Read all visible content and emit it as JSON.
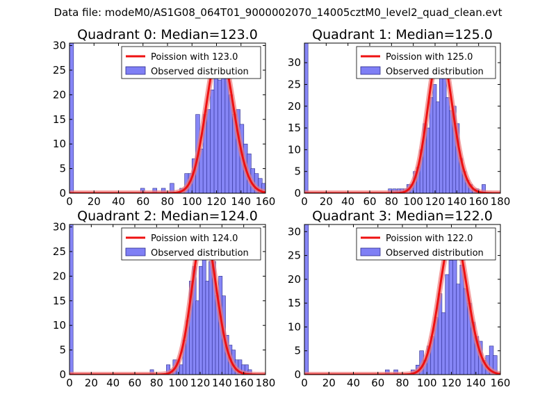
{
  "suptitle": "Data file: modeM0/AS1G08_064T01_9000002070_14005cztM0_level2_quad_clean.evt",
  "colors": {
    "hist_fill": "#7f7ff5",
    "hist_edge": "#2a2a8a",
    "poisson_line": "#ee1111",
    "poisson_glow": "#f07a7a",
    "axes": "#000000"
  },
  "chart_data": [
    {
      "type": "bar",
      "title": "Quadrant 0: Median=123.0",
      "xlim": [
        0,
        160
      ],
      "ylim": [
        0,
        30.5
      ],
      "xticks": [
        0,
        20,
        40,
        60,
        80,
        100,
        120,
        140,
        160
      ],
      "yticks": [
        0,
        5,
        10,
        15,
        20,
        25,
        30
      ],
      "bin_width": 3.3,
      "legend": {
        "position": "top-right",
        "line_label": "Poission with 123.0",
        "bar_label": "Observed distribution"
      },
      "poisson": {
        "mean": 123.0,
        "peak": 29.2
      },
      "histogram": [
        {
          "x": 0,
          "count": 30.5
        },
        {
          "x": 58,
          "count": 1
        },
        {
          "x": 68,
          "count": 1
        },
        {
          "x": 75,
          "count": 1
        },
        {
          "x": 82,
          "count": 2
        },
        {
          "x": 90,
          "count": 1
        },
        {
          "x": 94,
          "count": 4
        },
        {
          "x": 97,
          "count": 4
        },
        {
          "x": 100,
          "count": 7
        },
        {
          "x": 103,
          "count": 16
        },
        {
          "x": 106,
          "count": 9
        },
        {
          "x": 109,
          "count": 16
        },
        {
          "x": 112,
          "count": 17
        },
        {
          "x": 115,
          "count": 21
        },
        {
          "x": 118,
          "count": 25
        },
        {
          "x": 121,
          "count": 23
        },
        {
          "x": 124,
          "count": 27
        },
        {
          "x": 127,
          "count": 25
        },
        {
          "x": 130,
          "count": 20
        },
        {
          "x": 133,
          "count": 16
        },
        {
          "x": 136,
          "count": 17
        },
        {
          "x": 139,
          "count": 14
        },
        {
          "x": 142,
          "count": 10
        },
        {
          "x": 145,
          "count": 8
        },
        {
          "x": 148,
          "count": 5
        },
        {
          "x": 151,
          "count": 4
        },
        {
          "x": 154,
          "count": 3
        },
        {
          "x": 157,
          "count": 2
        }
      ]
    },
    {
      "type": "bar",
      "title": "Quadrant 1: Median=125.0",
      "xlim": [
        0,
        180
      ],
      "ylim": [
        0,
        34.5
      ],
      "xticks": [
        0,
        20,
        40,
        60,
        80,
        100,
        120,
        140,
        160,
        180
      ],
      "yticks": [
        0,
        5,
        10,
        15,
        20,
        25,
        30
      ],
      "bin_width": 3.3,
      "legend": {
        "position": "top-right",
        "line_label": "Poission with 125.0",
        "bar_label": "Observed distribution"
      },
      "poisson": {
        "mean": 125.0,
        "peak": 33.0
      },
      "histogram": [
        {
          "x": 0,
          "count": 34.5
        },
        {
          "x": 77,
          "count": 1
        },
        {
          "x": 81,
          "count": 1
        },
        {
          "x": 85,
          "count": 1
        },
        {
          "x": 88,
          "count": 1
        },
        {
          "x": 91,
          "count": 1
        },
        {
          "x": 94,
          "count": 2
        },
        {
          "x": 97,
          "count": 2
        },
        {
          "x": 100,
          "count": 5
        },
        {
          "x": 103,
          "count": 6
        },
        {
          "x": 106,
          "count": 10
        },
        {
          "x": 109,
          "count": 16
        },
        {
          "x": 112,
          "count": 15
        },
        {
          "x": 115,
          "count": 22
        },
        {
          "x": 118,
          "count": 25
        },
        {
          "x": 121,
          "count": 21
        },
        {
          "x": 124,
          "count": 32
        },
        {
          "x": 127,
          "count": 28
        },
        {
          "x": 130,
          "count": 22
        },
        {
          "x": 133,
          "count": 19
        },
        {
          "x": 136,
          "count": 20
        },
        {
          "x": 139,
          "count": 16
        },
        {
          "x": 142,
          "count": 8
        },
        {
          "x": 145,
          "count": 5
        },
        {
          "x": 148,
          "count": 3
        },
        {
          "x": 151,
          "count": 2
        },
        {
          "x": 154,
          "count": 1
        },
        {
          "x": 157,
          "count": 1
        },
        {
          "x": 163,
          "count": 2
        }
      ]
    },
    {
      "type": "bar",
      "title": "Quadrant 2: Median=124.0",
      "xlim": [
        0,
        180
      ],
      "ylim": [
        0,
        30.5
      ],
      "xticks": [
        0,
        20,
        40,
        60,
        80,
        100,
        120,
        140,
        160,
        180
      ],
      "yticks": [
        0,
        5,
        10,
        15,
        20,
        25,
        30
      ],
      "bin_width": 3.3,
      "legend": {
        "position": "top-right",
        "line_label": "Poission with 124.0",
        "bar_label": "Observed distribution"
      },
      "poisson": {
        "mean": 124.0,
        "peak": 29.2
      },
      "histogram": [
        {
          "x": 0,
          "count": 30.5
        },
        {
          "x": 74,
          "count": 1
        },
        {
          "x": 89,
          "count": 2
        },
        {
          "x": 92,
          "count": 1
        },
        {
          "x": 95,
          "count": 3
        },
        {
          "x": 98,
          "count": 3
        },
        {
          "x": 101,
          "count": 2
        },
        {
          "x": 104,
          "count": 7
        },
        {
          "x": 107,
          "count": 11
        },
        {
          "x": 110,
          "count": 19
        },
        {
          "x": 113,
          "count": 22
        },
        {
          "x": 116,
          "count": 15
        },
        {
          "x": 119,
          "count": 22
        },
        {
          "x": 122,
          "count": 26
        },
        {
          "x": 125,
          "count": 19
        },
        {
          "x": 128,
          "count": 23
        },
        {
          "x": 131,
          "count": 23
        },
        {
          "x": 134,
          "count": 16
        },
        {
          "x": 137,
          "count": 20
        },
        {
          "x": 140,
          "count": 16
        },
        {
          "x": 143,
          "count": 8
        },
        {
          "x": 146,
          "count": 6
        },
        {
          "x": 149,
          "count": 5
        },
        {
          "x": 152,
          "count": 3
        },
        {
          "x": 155,
          "count": 3
        },
        {
          "x": 158,
          "count": 2
        },
        {
          "x": 161,
          "count": 2
        },
        {
          "x": 164,
          "count": 1
        }
      ]
    },
    {
      "type": "bar",
      "title": "Quadrant 3: Median=122.0",
      "xlim": [
        0,
        160
      ],
      "ylim": [
        0,
        31.5
      ],
      "xticks": [
        0,
        20,
        40,
        60,
        80,
        100,
        120,
        140,
        160
      ],
      "yticks": [
        0,
        5,
        10,
        15,
        20,
        25,
        30
      ],
      "bin_width": 3.3,
      "legend": {
        "position": "top-right",
        "line_label": "Poission with 122.0",
        "bar_label": "Observed distribution"
      },
      "poisson": {
        "mean": 122.0,
        "peak": 30.0
      },
      "histogram": [
        {
          "x": 0,
          "count": 31.5
        },
        {
          "x": 66,
          "count": 1
        },
        {
          "x": 73,
          "count": 1
        },
        {
          "x": 87,
          "count": 1
        },
        {
          "x": 91,
          "count": 2
        },
        {
          "x": 94,
          "count": 5
        },
        {
          "x": 97,
          "count": 3
        },
        {
          "x": 100,
          "count": 6
        },
        {
          "x": 103,
          "count": 8
        },
        {
          "x": 106,
          "count": 12
        },
        {
          "x": 109,
          "count": 17
        },
        {
          "x": 112,
          "count": 13
        },
        {
          "x": 115,
          "count": 21
        },
        {
          "x": 118,
          "count": 24
        },
        {
          "x": 121,
          "count": 26
        },
        {
          "x": 124,
          "count": 19
        },
        {
          "x": 127,
          "count": 23
        },
        {
          "x": 130,
          "count": 18
        },
        {
          "x": 133,
          "count": 15
        },
        {
          "x": 136,
          "count": 11
        },
        {
          "x": 139,
          "count": 8
        },
        {
          "x": 142,
          "count": 7
        },
        {
          "x": 145,
          "count": 3
        },
        {
          "x": 148,
          "count": 4
        },
        {
          "x": 151,
          "count": 6
        },
        {
          "x": 154,
          "count": 4
        }
      ]
    }
  ]
}
